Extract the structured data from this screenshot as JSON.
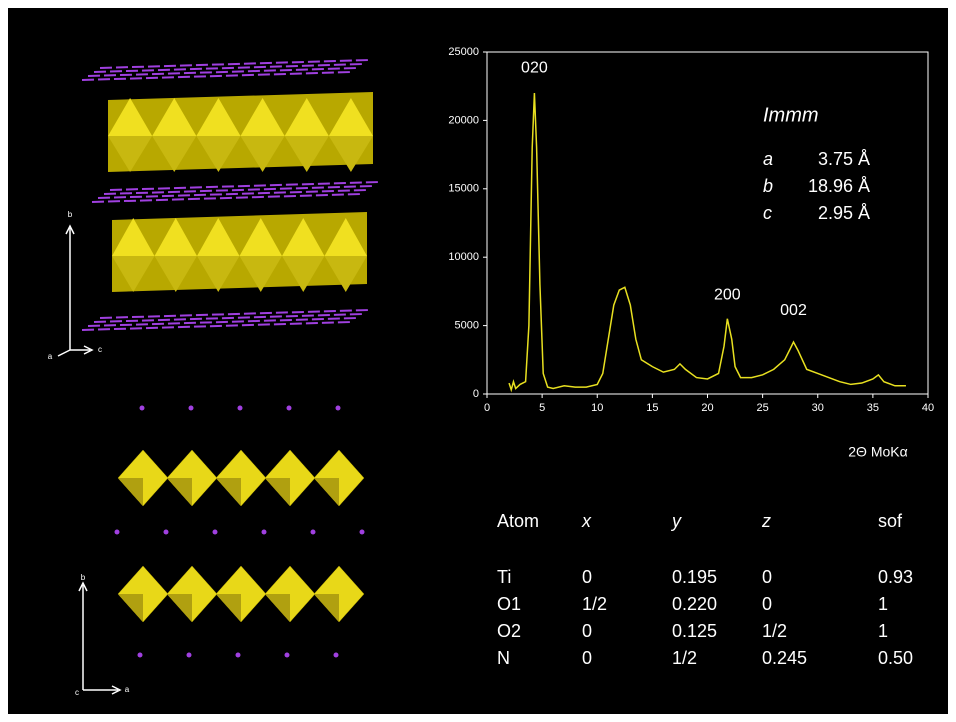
{
  "chart_data": {
    "type": "line",
    "x_label": "2Θ MoKα",
    "x": [
      2.0,
      2.2,
      2.4,
      2.6,
      3.0,
      3.5,
      3.8,
      4.1,
      4.3,
      4.5,
      4.8,
      5.1,
      5.5,
      6,
      7,
      8,
      9,
      10,
      10.5,
      11,
      11.5,
      12,
      12.5,
      13,
      13.5,
      14,
      15,
      16,
      17,
      17.5,
      18,
      19,
      20,
      21,
      21.5,
      21.8,
      22.2,
      22.5,
      23,
      24,
      25,
      26,
      27,
      27.5,
      27.8,
      28.2,
      29,
      30,
      31,
      32,
      33,
      34,
      35,
      35.5,
      36,
      37,
      38
    ],
    "series": [
      {
        "color": "#e8e020",
        "values": [
          800,
          300,
          900,
          400,
          700,
          900,
          5000,
          18000,
          22000,
          18000,
          8000,
          1500,
          500,
          400,
          600,
          500,
          500,
          700,
          1500,
          4000,
          6500,
          7600,
          7800,
          6500,
          4000,
          2500,
          2000,
          1600,
          1800,
          2200,
          1800,
          1200,
          1100,
          1500,
          3500,
          5500,
          4000,
          2000,
          1200,
          1200,
          1400,
          1800,
          2500,
          3300,
          3800,
          3200,
          1800,
          1500,
          1200,
          900,
          700,
          800,
          1100,
          1400,
          900,
          600,
          600
        ]
      }
    ],
    "xlim": [
      0,
      40
    ],
    "xticks": [
      0,
      5,
      10,
      15,
      20,
      25,
      30,
      35,
      40
    ],
    "ylim": [
      0,
      25000
    ],
    "yticks": [
      0,
      5000,
      10000,
      15000,
      20000,
      25000
    ],
    "annotations": [
      {
        "text": "020",
        "x": 4.3,
        "y": 23800
      },
      {
        "text": "200",
        "x": 21.8,
        "y": 7200
      },
      {
        "text": "002",
        "x": 27.8,
        "y": 6100
      }
    ]
  },
  "cell": {
    "space_group": "Immm",
    "params": [
      {
        "symbol": "a",
        "value": "3.75 Å"
      },
      {
        "symbol": "b",
        "value": "18.96 Å"
      },
      {
        "symbol": "c",
        "value": "2.95 Å"
      }
    ]
  },
  "table": {
    "header": [
      "Atom",
      "x",
      "y",
      "z",
      "sof"
    ],
    "rows": [
      [
        "Ti",
        "0",
        "0.195",
        "0",
        "0.93"
      ],
      [
        "O1",
        "1/2",
        "0.220",
        "0",
        "1"
      ],
      [
        "O2",
        "0",
        "0.125",
        "1/2",
        "1"
      ],
      [
        "N",
        "0",
        "1/2",
        "0.245",
        "0.50"
      ]
    ]
  },
  "structure_top": {
    "axes": [
      "b",
      "a",
      "c"
    ]
  },
  "structure_bottom": {
    "axes": [
      "b",
      "c",
      "a"
    ]
  }
}
